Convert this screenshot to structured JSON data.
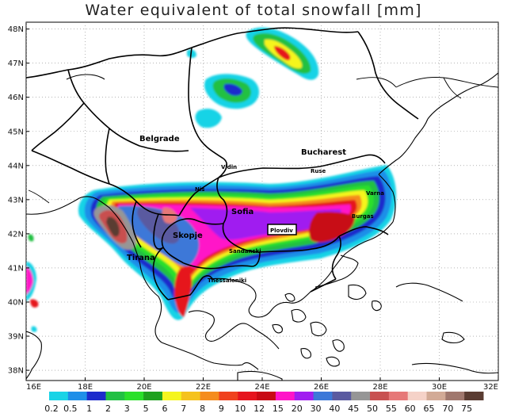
{
  "title": "Water equivalent of total snowfall  [mm]",
  "latitude_labels": [
    "48N",
    "47N",
    "46N",
    "45N",
    "44N",
    "43N",
    "42N",
    "41N",
    "40N",
    "39N",
    "38N"
  ],
  "longitude_labels": [
    "16E",
    "18E",
    "20E",
    "22E",
    "24E",
    "26E",
    "28E",
    "30E",
    "32E"
  ],
  "cities": [
    {
      "name": "Belgrade",
      "size": "large"
    },
    {
      "name": "Bucharest",
      "size": "large"
    },
    {
      "name": "Vidin",
      "size": "small"
    },
    {
      "name": "Ruse",
      "size": "small"
    },
    {
      "name": "Nis",
      "size": "small"
    },
    {
      "name": "Varna",
      "size": "small"
    },
    {
      "name": "Sofia",
      "size": "large"
    },
    {
      "name": "Burgas",
      "size": "small"
    },
    {
      "name": "Skopje",
      "size": "large"
    },
    {
      "name": "Plovdiv",
      "size": "small",
      "highlighted": true
    },
    {
      "name": "Sandanski",
      "size": "small"
    },
    {
      "name": "Tirana",
      "size": "large"
    },
    {
      "name": "Thessaloniki",
      "size": "small"
    }
  ],
  "legend": {
    "labels": [
      "0.2",
      "0.5",
      "1",
      "2",
      "3",
      "5",
      "6",
      "7",
      "8",
      "9",
      "10",
      "12",
      "15",
      "20",
      "30",
      "40",
      "45",
      "50",
      "55",
      "60",
      "65",
      "70",
      "75"
    ],
    "colors": [
      "#19d3e6",
      "#1f8fe8",
      "#1d2bcc",
      "#21c043",
      "#2ae02a",
      "#1fa11f",
      "#f5f51e",
      "#f5c21e",
      "#f58c1e",
      "#f0411e",
      "#e6141e",
      "#c80a14",
      "#ff14c8",
      "#a01ef0",
      "#3c78d8",
      "#5a5aa0",
      "#969696",
      "#c85050",
      "#e67878",
      "#f5d2c8",
      "#d2aa96",
      "#a0786e",
      "#5a3c32"
    ]
  },
  "map_extent": {
    "lon_min": 16,
    "lon_max": 32,
    "lat_min": 37.7,
    "lat_max": 48.2
  }
}
